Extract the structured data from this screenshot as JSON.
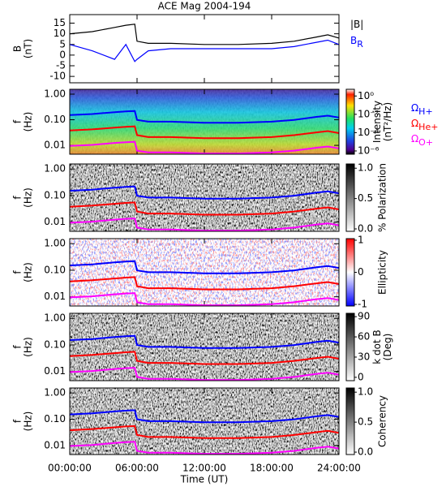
{
  "chart_data": [
    {
      "type": "line",
      "title": "ACE Mag 2004-194",
      "ylabel": [
        "B",
        "(nT)"
      ],
      "x": [
        0,
        2,
        4,
        5,
        5.8,
        6,
        7,
        9,
        12,
        15,
        18,
        20,
        22,
        23,
        24
      ],
      "xlim": [
        0,
        24
      ],
      "ylim": [
        -13,
        19
      ],
      "yticks": [
        -10,
        -5,
        0,
        5,
        10,
        15
      ],
      "series": [
        {
          "name": "|B|",
          "color": "#000000",
          "values": [
            10,
            11,
            13,
            14,
            14.5,
            6.5,
            5.5,
            5.5,
            5,
            5,
            5.5,
            6.5,
            8.5,
            9.5,
            8
          ]
        },
        {
          "name": "B",
          "subscript": "R",
          "color": "#0000ff",
          "values": [
            5,
            2,
            -2,
            5,
            -3,
            -2,
            2,
            3,
            3,
            3,
            3,
            4,
            6,
            7,
            5
          ]
        }
      ]
    },
    {
      "type": "spectrogram",
      "colormap": "rainbow",
      "ylabel": [
        "f",
        "(Hz)"
      ],
      "ylog": true,
      "x": [
        0,
        2,
        4,
        5,
        5.8,
        6,
        7,
        9,
        12,
        15,
        18,
        20,
        22,
        23,
        24
      ],
      "xlim": [
        0,
        24
      ],
      "ylim": [
        0.0045,
        1.55
      ],
      "yticks": [
        {
          "value": 1,
          "label": "1.00"
        },
        {
          "value": 0.1,
          "label": "0.10"
        },
        {
          "value": 0.01,
          "label": "0.01"
        }
      ],
      "series": [
        {
          "name": "Ω",
          "subscript": "H+",
          "color": "#0000ff",
          "values": [
            0.152,
            0.167,
            0.198,
            0.213,
            0.22,
            0.099,
            0.084,
            0.084,
            0.076,
            0.076,
            0.084,
            0.099,
            0.129,
            0.144,
            0.122
          ]
        },
        {
          "name": "Ω",
          "subscript": "He+",
          "color": "#ff0000",
          "values": [
            0.038,
            0.042,
            0.049,
            0.053,
            0.055,
            0.025,
            0.021,
            0.021,
            0.019,
            0.019,
            0.021,
            0.025,
            0.032,
            0.036,
            0.03
          ]
        },
        {
          "name": "Ω",
          "subscript": "O+",
          "color": "#ff00ff",
          "values": [
            0.0095,
            0.0104,
            0.0124,
            0.0133,
            0.0138,
            0.0062,
            0.0053,
            0.0053,
            0.0048,
            0.0048,
            0.0053,
            0.0062,
            0.0081,
            0.009,
            0.0076
          ]
        }
      ],
      "clabel": [
        "Intensity",
        "(nT²/Hz)"
      ],
      "clog": true,
      "clim": [
        4.4e-07,
        5.4
      ],
      "cticks": [
        {
          "value": 1,
          "label": "10⁰"
        },
        {
          "value": 0.01,
          "label": "10⁻²"
        },
        {
          "value": 0.0001,
          "label": "10⁻⁴"
        },
        {
          "value": 1e-06,
          "label": "10⁻⁶"
        }
      ]
    },
    {
      "type": "spectrogram",
      "colormap": "gray",
      "ylabel": [
        "f",
        "(Hz)"
      ],
      "ylog": true,
      "x": [
        0,
        2,
        4,
        5,
        5.8,
        6,
        7,
        9,
        12,
        15,
        18,
        20,
        22,
        23,
        24
      ],
      "xlim": [
        0,
        24
      ],
      "ylim": [
        0.0045,
        1.55
      ],
      "yticks": [
        {
          "value": 1,
          "label": "1.00"
        },
        {
          "value": 0.1,
          "label": "0.10"
        },
        {
          "value": 0.01,
          "label": "0.01"
        }
      ],
      "series": [
        {
          "color": "#0000ff",
          "values": [
            0.152,
            0.167,
            0.198,
            0.213,
            0.22,
            0.099,
            0.084,
            0.084,
            0.076,
            0.076,
            0.084,
            0.099,
            0.129,
            0.144,
            0.122
          ]
        },
        {
          "color": "#ff0000",
          "values": [
            0.038,
            0.042,
            0.049,
            0.053,
            0.055,
            0.025,
            0.021,
            0.021,
            0.019,
            0.019,
            0.021,
            0.025,
            0.032,
            0.036,
            0.03
          ]
        },
        {
          "color": "#ff00ff",
          "values": [
            0.0095,
            0.0104,
            0.0124,
            0.0133,
            0.0138,
            0.0062,
            0.0053,
            0.0053,
            0.0048,
            0.0048,
            0.0053,
            0.0062,
            0.0081,
            0.009,
            0.0076
          ]
        }
      ],
      "clabel": [
        "% Polarization"
      ],
      "clim": [
        -0.04,
        1.07
      ],
      "cticks": [
        {
          "value": 1,
          "label": "1.0"
        },
        {
          "value": 0.5,
          "label": "0.5"
        },
        {
          "value": 0,
          "label": "0.0"
        }
      ]
    },
    {
      "type": "spectrogram",
      "colormap": "bwr",
      "ylabel": [
        "f",
        "(Hz)"
      ],
      "ylog": true,
      "x": [
        0,
        2,
        4,
        5,
        5.8,
        6,
        7,
        9,
        12,
        15,
        18,
        20,
        22,
        23,
        24
      ],
      "xlim": [
        0,
        24
      ],
      "ylim": [
        0.0045,
        1.55
      ],
      "yticks": [
        {
          "value": 1,
          "label": "1.00"
        },
        {
          "value": 0.1,
          "label": "0.10"
        },
        {
          "value": 0.01,
          "label": "0.01"
        }
      ],
      "series": [
        {
          "color": "#0000ff",
          "values": [
            0.152,
            0.167,
            0.198,
            0.213,
            0.22,
            0.099,
            0.084,
            0.084,
            0.076,
            0.076,
            0.084,
            0.099,
            0.129,
            0.144,
            0.122
          ]
        },
        {
          "color": "#ff0000",
          "values": [
            0.038,
            0.042,
            0.049,
            0.053,
            0.055,
            0.025,
            0.021,
            0.021,
            0.019,
            0.019,
            0.021,
            0.025,
            0.032,
            0.036,
            0.03
          ]
        },
        {
          "color": "#ff00ff",
          "values": [
            0.0095,
            0.0104,
            0.0124,
            0.0133,
            0.0138,
            0.0062,
            0.0053,
            0.0053,
            0.0048,
            0.0048,
            0.0053,
            0.0062,
            0.0081,
            0.009,
            0.0076
          ]
        }
      ],
      "clabel": [
        "Ellipticity"
      ],
      "clim": [
        -1.05,
        1.05
      ],
      "cticks": [
        1,
        0,
        -1
      ]
    },
    {
      "type": "spectrogram",
      "colormap": "gray",
      "ylabel": [
        "f",
        "(Hz)"
      ],
      "ylog": true,
      "x": [
        0,
        2,
        4,
        5,
        5.8,
        6,
        7,
        9,
        12,
        15,
        18,
        20,
        22,
        23,
        24
      ],
      "xlim": [
        0,
        24
      ],
      "ylim": [
        0.0045,
        1.55
      ],
      "yticks": [
        {
          "value": 1,
          "label": "1.00"
        },
        {
          "value": 0.1,
          "label": "0.10"
        },
        {
          "value": 0.01,
          "label": "0.01"
        }
      ],
      "series": [
        {
          "color": "#0000ff",
          "values": [
            0.152,
            0.167,
            0.198,
            0.213,
            0.22,
            0.099,
            0.084,
            0.084,
            0.076,
            0.076,
            0.084,
            0.099,
            0.129,
            0.144,
            0.122
          ]
        },
        {
          "color": "#ff0000",
          "values": [
            0.038,
            0.042,
            0.049,
            0.053,
            0.055,
            0.025,
            0.021,
            0.021,
            0.019,
            0.019,
            0.021,
            0.025,
            0.032,
            0.036,
            0.03
          ]
        },
        {
          "color": "#ff00ff",
          "values": [
            0.0095,
            0.0104,
            0.0124,
            0.0133,
            0.0138,
            0.0062,
            0.0053,
            0.0053,
            0.0048,
            0.0048,
            0.0053,
            0.0062,
            0.0081,
            0.009,
            0.0076
          ]
        }
      ],
      "clabel": [
        "k dot B",
        "(Deg)"
      ],
      "clim": [
        -5,
        95
      ],
      "cticks": [
        90,
        60,
        30,
        0
      ]
    },
    {
      "type": "spectrogram",
      "colormap": "gray",
      "ylabel": [
        "f",
        "(Hz)"
      ],
      "ylog": true,
      "x": [
        0,
        2,
        4,
        5,
        5.8,
        6,
        7,
        9,
        12,
        15,
        18,
        20,
        22,
        23,
        24
      ],
      "xlim": [
        0,
        24
      ],
      "ylim": [
        0.0045,
        1.55
      ],
      "yticks": [
        {
          "value": 1,
          "label": "1.00"
        },
        {
          "value": 0.1,
          "label": "0.10"
        },
        {
          "value": 0.01,
          "label": "0.01"
        }
      ],
      "series": [
        {
          "color": "#0000ff",
          "values": [
            0.152,
            0.167,
            0.198,
            0.213,
            0.22,
            0.099,
            0.084,
            0.084,
            0.076,
            0.076,
            0.084,
            0.099,
            0.129,
            0.144,
            0.122
          ]
        },
        {
          "color": "#ff0000",
          "values": [
            0.038,
            0.042,
            0.049,
            0.053,
            0.055,
            0.025,
            0.021,
            0.021,
            0.019,
            0.019,
            0.021,
            0.025,
            0.032,
            0.036,
            0.03
          ]
        },
        {
          "color": "#ff00ff",
          "values": [
            0.0095,
            0.0104,
            0.0124,
            0.0133,
            0.0138,
            0.0062,
            0.0053,
            0.0053,
            0.0048,
            0.0048,
            0.0053,
            0.0062,
            0.0081,
            0.009,
            0.0076
          ]
        }
      ],
      "clabel": [
        "Coherency"
      ],
      "clim": [
        -0.04,
        1.07
      ],
      "cticks": [
        {
          "value": 1,
          "label": "1.0"
        },
        {
          "value": 0.5,
          "label": "0.5"
        },
        {
          "value": 0,
          "label": "0.0"
        }
      ],
      "xlabel": "Time (UT)",
      "xticks": [
        {
          "value": 0,
          "label": "00:00:00"
        },
        {
          "value": 6,
          "label": "06:00:00"
        },
        {
          "value": 12,
          "label": "12:00:00"
        },
        {
          "value": 18,
          "label": "18:00:00"
        },
        {
          "value": 24,
          "label": "24:00:00"
        }
      ]
    }
  ]
}
